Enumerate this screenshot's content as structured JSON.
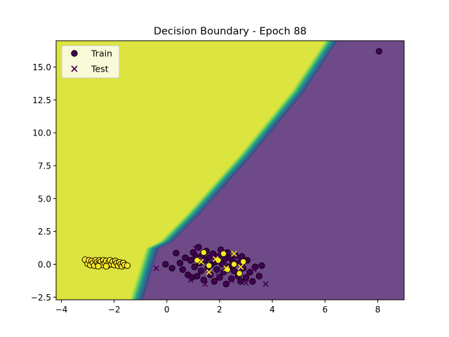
{
  "chart_data": {
    "type": "scatter",
    "title": "Decision Boundary - Epoch 88",
    "xlabel": "",
    "ylabel": "",
    "xlim": [
      -4.2,
      9.0
    ],
    "ylim": [
      -2.7,
      17.0
    ],
    "x_ticks": [
      -4,
      -2,
      0,
      2,
      4,
      6,
      8
    ],
    "x_tick_labels": [
      "−4",
      "−2",
      "0",
      "2",
      "4",
      "6",
      "8"
    ],
    "y_ticks": [
      -2.5,
      0.0,
      2.5,
      5.0,
      7.5,
      10.0,
      12.5,
      15.0
    ],
    "y_tick_labels": [
      "−2.5",
      "0.0",
      "2.5",
      "5.0",
      "7.5",
      "10.0",
      "12.5",
      "15.0"
    ],
    "grid": false,
    "legend": {
      "position": "top-left",
      "entries": [
        {
          "label": "Train",
          "marker": "circle"
        },
        {
          "label": "Test",
          "marker": "x"
        }
      ]
    },
    "regions": {
      "class_1_color": "#dce43f",
      "class_0_color": "#6f4a89",
      "transition_colors": [
        "#a9dc4c",
        "#5ec665",
        "#2aa583",
        "#27838e",
        "#2f6a8d",
        "#414d89"
      ],
      "boundary": [
        [
          -1.15,
          -2.7
        ],
        [
          -0.55,
          1.2
        ],
        [
          0.0,
          1.75
        ],
        [
          1.0,
          3.8
        ],
        [
          3.0,
          8.3
        ],
        [
          5.0,
          13.2
        ],
        [
          6.25,
          17.0
        ]
      ]
    },
    "series": [
      {
        "name": "Train",
        "marker": "circle",
        "points": [
          {
            "x": -3.1,
            "y": 0.35,
            "c": 1
          },
          {
            "x": -3.0,
            "y": 0.05,
            "c": 1
          },
          {
            "x": -2.95,
            "y": 0.3,
            "c": 1
          },
          {
            "x": -2.9,
            "y": -0.05,
            "c": 1
          },
          {
            "x": -2.85,
            "y": 0.25,
            "c": 1
          },
          {
            "x": -2.8,
            "y": 0.1,
            "c": 1
          },
          {
            "x": -2.75,
            "y": -0.1,
            "c": 1
          },
          {
            "x": -2.7,
            "y": 0.3,
            "c": 1
          },
          {
            "x": -2.65,
            "y": 0.15,
            "c": 1
          },
          {
            "x": -2.6,
            "y": 0.0,
            "c": 1
          },
          {
            "x": -2.55,
            "y": 0.3,
            "c": 1
          },
          {
            "x": -2.5,
            "y": 0.2,
            "c": 1
          },
          {
            "x": -2.45,
            "y": -0.05,
            "c": 1
          },
          {
            "x": -2.4,
            "y": 0.3,
            "c": 1
          },
          {
            "x": -2.35,
            "y": 0.1,
            "c": 1
          },
          {
            "x": -2.3,
            "y": 0.25,
            "c": 1
          },
          {
            "x": -2.25,
            "y": -0.1,
            "c": 1
          },
          {
            "x": -2.2,
            "y": 0.15,
            "c": 1
          },
          {
            "x": -2.15,
            "y": 0.3,
            "c": 1
          },
          {
            "x": -2.1,
            "y": 0.0,
            "c": 1
          },
          {
            "x": -2.05,
            "y": 0.2,
            "c": 1
          },
          {
            "x": -2.0,
            "y": -0.05,
            "c": 1
          },
          {
            "x": -1.95,
            "y": 0.25,
            "c": 1
          },
          {
            "x": -1.9,
            "y": 0.1,
            "c": 1
          },
          {
            "x": -1.85,
            "y": -0.1,
            "c": 1
          },
          {
            "x": -1.8,
            "y": 0.15,
            "c": 1
          },
          {
            "x": -1.75,
            "y": 0.0,
            "c": 1
          },
          {
            "x": -1.7,
            "y": -0.15,
            "c": 1
          },
          {
            "x": -1.65,
            "y": 0.1,
            "c": 1
          },
          {
            "x": -1.6,
            "y": -0.05,
            "c": 1
          },
          {
            "x": -1.5,
            "y": -0.1,
            "c": 1
          },
          {
            "x": -2.6,
            "y": -0.15,
            "c": 1
          },
          {
            "x": -2.3,
            "y": -0.15,
            "c": 1
          },
          {
            "x": -0.05,
            "y": 0.0,
            "c": 0
          },
          {
            "x": 0.2,
            "y": -0.3,
            "c": 0
          },
          {
            "x": 0.35,
            "y": 0.85,
            "c": 0
          },
          {
            "x": 0.5,
            "y": 0.1,
            "c": 0
          },
          {
            "x": 0.6,
            "y": -0.4,
            "c": 0
          },
          {
            "x": 0.7,
            "y": 0.5,
            "c": 0
          },
          {
            "x": 0.8,
            "y": -0.8,
            "c": 0
          },
          {
            "x": 0.9,
            "y": 0.3,
            "c": 0
          },
          {
            "x": 0.95,
            "y": -1.0,
            "c": 0
          },
          {
            "x": 1.0,
            "y": 0.9,
            "c": 0
          },
          {
            "x": 1.05,
            "y": -0.2,
            "c": 0
          },
          {
            "x": 1.1,
            "y": 0.6,
            "c": 0
          },
          {
            "x": 1.15,
            "y": -0.9,
            "c": 0
          },
          {
            "x": 1.2,
            "y": 1.3,
            "c": 0
          },
          {
            "x": 1.25,
            "y": 0.1,
            "c": 0
          },
          {
            "x": 1.3,
            "y": -0.5,
            "c": 0
          },
          {
            "x": 1.35,
            "y": 0.7,
            "c": 0
          },
          {
            "x": 1.4,
            "y": -1.2,
            "c": 0
          },
          {
            "x": 1.45,
            "y": 0.3,
            "c": 0
          },
          {
            "x": 1.5,
            "y": 1.0,
            "c": 0
          },
          {
            "x": 1.55,
            "y": -0.3,
            "c": 0
          },
          {
            "x": 1.6,
            "y": 0.5,
            "c": 0
          },
          {
            "x": 1.65,
            "y": -0.8,
            "c": 0
          },
          {
            "x": 1.7,
            "y": 0.0,
            "c": 0
          },
          {
            "x": 1.75,
            "y": 0.8,
            "c": 0
          },
          {
            "x": 1.8,
            "y": -1.3,
            "c": 0
          },
          {
            "x": 1.85,
            "y": 0.2,
            "c": 0
          },
          {
            "x": 1.9,
            "y": -0.4,
            "c": 0
          },
          {
            "x": 1.95,
            "y": 0.6,
            "c": 0
          },
          {
            "x": 2.0,
            "y": -1.0,
            "c": 0
          },
          {
            "x": 2.05,
            "y": 1.1,
            "c": 0
          },
          {
            "x": 2.1,
            "y": 0.0,
            "c": 0
          },
          {
            "x": 2.15,
            "y": -0.6,
            "c": 0
          },
          {
            "x": 2.2,
            "y": 0.4,
            "c": 0
          },
          {
            "x": 2.25,
            "y": -1.5,
            "c": 0
          },
          {
            "x": 2.3,
            "y": 0.9,
            "c": 0
          },
          {
            "x": 2.35,
            "y": -0.2,
            "c": 0
          },
          {
            "x": 2.4,
            "y": 0.5,
            "c": 0
          },
          {
            "x": 2.45,
            "y": -1.1,
            "c": 0
          },
          {
            "x": 2.5,
            "y": 0.2,
            "c": 0
          },
          {
            "x": 2.55,
            "y": -0.5,
            "c": 0
          },
          {
            "x": 2.6,
            "y": 0.7,
            "c": 0
          },
          {
            "x": 2.7,
            "y": -0.9,
            "c": 0
          },
          {
            "x": 2.75,
            "y": 0.1,
            "c": 0
          },
          {
            "x": 2.8,
            "y": -1.3,
            "c": 0
          },
          {
            "x": 2.85,
            "y": 0.6,
            "c": 0
          },
          {
            "x": 2.9,
            "y": -0.3,
            "c": 0
          },
          {
            "x": 3.0,
            "y": -1.0,
            "c": 0
          },
          {
            "x": 3.05,
            "y": 0.3,
            "c": 0
          },
          {
            "x": 3.15,
            "y": -0.6,
            "c": 0
          },
          {
            "x": 3.25,
            "y": -1.3,
            "c": 0
          },
          {
            "x": 3.35,
            "y": -0.2,
            "c": 0
          },
          {
            "x": 3.5,
            "y": -0.9,
            "c": 0
          },
          {
            "x": 3.6,
            "y": -0.1,
            "c": 0
          },
          {
            "x": 8.05,
            "y": 16.2,
            "c": 0
          },
          {
            "x": 1.15,
            "y": 0.3,
            "c": 1
          },
          {
            "x": 1.6,
            "y": -0.1,
            "c": 1
          },
          {
            "x": 1.95,
            "y": 0.3,
            "c": 1
          },
          {
            "x": 2.3,
            "y": -0.4,
            "c": 1
          },
          {
            "x": 2.55,
            "y": 0.0,
            "c": 1
          },
          {
            "x": 2.75,
            "y": -0.7,
            "c": 1
          },
          {
            "x": 1.4,
            "y": 0.9,
            "c": 1
          },
          {
            "x": 2.15,
            "y": 0.8,
            "c": 1
          },
          {
            "x": 2.9,
            "y": 0.2,
            "c": 1
          }
        ]
      },
      {
        "name": "Test",
        "marker": "x",
        "points": [
          {
            "x": -0.4,
            "y": -0.3,
            "c": 0
          },
          {
            "x": 0.9,
            "y": -1.2,
            "c": 0
          },
          {
            "x": 1.1,
            "y": 1.2,
            "c": 0
          },
          {
            "x": 1.45,
            "y": -1.5,
            "c": 0
          },
          {
            "x": 1.7,
            "y": 0.6,
            "c": 0
          },
          {
            "x": 1.95,
            "y": -0.9,
            "c": 0
          },
          {
            "x": 2.2,
            "y": 0.2,
            "c": 0
          },
          {
            "x": 2.45,
            "y": -1.2,
            "c": 0
          },
          {
            "x": 2.7,
            "y": 0.5,
            "c": 0
          },
          {
            "x": 3.0,
            "y": -1.4,
            "c": 0
          },
          {
            "x": 3.3,
            "y": -0.4,
            "c": 0
          },
          {
            "x": 3.75,
            "y": -1.5,
            "c": 0
          },
          {
            "x": 1.3,
            "y": 0.2,
            "c": 1
          },
          {
            "x": 1.85,
            "y": 0.4,
            "c": 1
          },
          {
            "x": 2.25,
            "y": -0.3,
            "c": 1
          },
          {
            "x": 2.55,
            "y": 0.8,
            "c": 1
          },
          {
            "x": 1.6,
            "y": -0.6,
            "c": 1
          },
          {
            "x": 2.8,
            "y": -0.2,
            "c": 1
          }
        ]
      }
    ],
    "point_colors": {
      "class_0": "#440154",
      "class_1": "#fde725"
    }
  }
}
